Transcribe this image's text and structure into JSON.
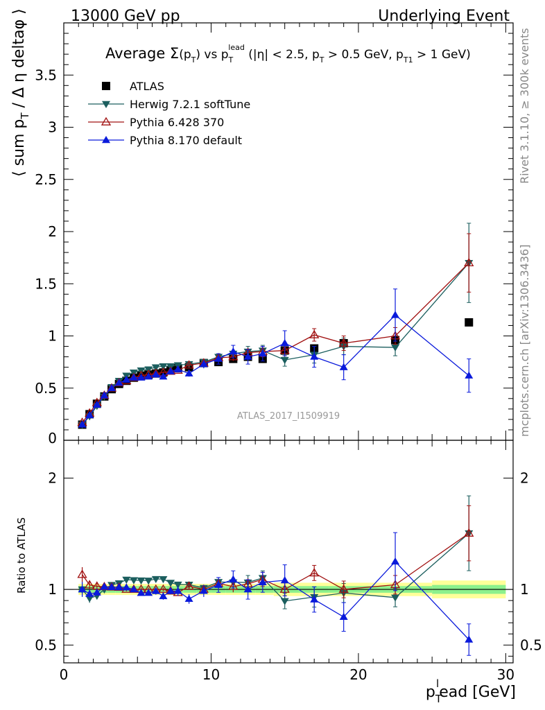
{
  "header": {
    "left_label": "13000 GeV pp",
    "right_label": "Underlying Event"
  },
  "side_labels": {
    "rivet": "Rivet 3.1.10, ≥ 300k events",
    "mcplots": "mcplots.cern.ch [arXiv:1306.3436]"
  },
  "chart_data": {
    "type": "scatter",
    "title": "Average Σ(pT) vs pT_lead (|η| < 2.5, pT > 0.5 GeV, pT1 > 1 GeV)",
    "title_parts": {
      "prefix": "Average ",
      "sigma": "Σ",
      "p1": "(p",
      "sub_T": "T",
      "p2": ") vs p",
      "sup_lead": "lead",
      "p3": " (|η| < 2.5, p",
      "p4": " > 0.5 GeV, p",
      "sub_T1": "T1",
      "p5": " > 1 GeV)"
    },
    "watermark": "ATLAS_2017_I1509919",
    "ylabel": "⟨ sum p_T / Δη deltaφ ⟩",
    "ylabel_parts": {
      "a": "⟨ sum p",
      "sub": "T",
      "b": " / Δ η deltaφ ⟩"
    },
    "xlabel": "p_T^l ead [GeV]",
    "xlabel_parts": {
      "p": "p",
      "sub": "T",
      "sup": "l",
      "rest": "ead [GeV]"
    },
    "ratio_ylabel": "Ratio to ATLAS",
    "xlim": [
      0,
      30.5
    ],
    "ylim": [
      0,
      4.0
    ],
    "ratio_ylim": [
      0.34,
      2.34
    ],
    "x_ticks": [
      0,
      10,
      20,
      30
    ],
    "y_ticks": [
      0.5,
      1,
      1.5,
      2,
      2.5,
      3,
      3.5
    ],
    "y_tick_labels": [
      "0.5",
      "1",
      "1.5",
      "2",
      "2.5",
      "3",
      "3.5"
    ],
    "y_zero_label": "0",
    "ratio_ticks": [
      0.5,
      1,
      2
    ],
    "ratio_tick_labels": [
      "0.5",
      "1",
      "2"
    ],
    "legend_position": "top-left",
    "x": [
      1.25,
      1.75,
      2.25,
      2.75,
      3.25,
      3.75,
      4.25,
      4.75,
      5.25,
      5.75,
      6.25,
      6.75,
      7.25,
      7.75,
      8.5,
      9.5,
      10.5,
      11.5,
      12.5,
      13.5,
      15.0,
      17.0,
      19.0,
      22.5,
      27.5
    ],
    "series": [
      {
        "name": "ATLAS",
        "color": "#000000",
        "marker": "square",
        "values": [
          0.15,
          0.25,
          0.35,
          0.42,
          0.49,
          0.54,
          0.57,
          0.6,
          0.62,
          0.63,
          0.64,
          0.65,
          0.67,
          0.69,
          0.7,
          0.74,
          0.75,
          0.78,
          0.8,
          0.78,
          0.86,
          0.88,
          0.93,
          0.96,
          1.13
        ],
        "band_inner": [
          0.03,
          0.03,
          0.03,
          0.03,
          0.03,
          0.03,
          0.03,
          0.03,
          0.03,
          0.03,
          0.03,
          0.03,
          0.03,
          0.03,
          0.03,
          0.03,
          0.03,
          0.03,
          0.03,
          0.03,
          0.03,
          0.03,
          0.03,
          0.03,
          0.04
        ],
        "band_outer": [
          0.05,
          0.05,
          0.05,
          0.05,
          0.05,
          0.05,
          0.05,
          0.05,
          0.05,
          0.05,
          0.05,
          0.05,
          0.05,
          0.05,
          0.05,
          0.05,
          0.05,
          0.05,
          0.05,
          0.05,
          0.06,
          0.06,
          0.06,
          0.06,
          0.08
        ]
      },
      {
        "name": "Herwig 7.2.1 softTune",
        "color": "#1b5e5e",
        "marker": "triangle-down",
        "values": [
          0.15,
          0.23,
          0.33,
          0.42,
          0.51,
          0.57,
          0.62,
          0.65,
          0.67,
          0.68,
          0.7,
          0.71,
          0.71,
          0.72,
          0.73,
          0.75,
          0.8,
          0.83,
          0.85,
          0.86,
          0.77,
          0.82,
          0.9,
          0.89,
          1.7
        ],
        "errors": [
          0.01,
          0.01,
          0.01,
          0.01,
          0.01,
          0.01,
          0.01,
          0.01,
          0.01,
          0.01,
          0.01,
          0.01,
          0.01,
          0.01,
          0.02,
          0.02,
          0.03,
          0.04,
          0.05,
          0.05,
          0.06,
          0.08,
          0.08,
          0.08,
          0.38
        ]
      },
      {
        "name": "Pythia 6.428 370",
        "color": "#a01010",
        "marker": "triangle-up-open",
        "values": [
          0.17,
          0.26,
          0.36,
          0.43,
          0.5,
          0.55,
          0.57,
          0.6,
          0.62,
          0.63,
          0.64,
          0.65,
          0.66,
          0.67,
          0.72,
          0.74,
          0.79,
          0.8,
          0.84,
          0.85,
          0.86,
          1.01,
          0.93,
          1.0,
          1.7
        ],
        "errors": [
          0.01,
          0.01,
          0.01,
          0.01,
          0.01,
          0.01,
          0.01,
          0.01,
          0.01,
          0.01,
          0.01,
          0.01,
          0.01,
          0.01,
          0.02,
          0.02,
          0.03,
          0.04,
          0.04,
          0.05,
          0.05,
          0.06,
          0.07,
          0.08,
          0.28
        ]
      },
      {
        "name": "Pythia 8.170 default",
        "color": "#0a1adb",
        "marker": "triangle-up",
        "values": [
          0.15,
          0.24,
          0.34,
          0.43,
          0.5,
          0.55,
          0.58,
          0.6,
          0.6,
          0.61,
          0.63,
          0.61,
          0.66,
          0.68,
          0.64,
          0.73,
          0.78,
          0.85,
          0.8,
          0.83,
          0.93,
          0.8,
          0.7,
          1.2,
          0.62
        ],
        "errors": [
          0.01,
          0.01,
          0.01,
          0.01,
          0.01,
          0.01,
          0.01,
          0.01,
          0.01,
          0.01,
          0.02,
          0.02,
          0.02,
          0.03,
          0.03,
          0.04,
          0.05,
          0.06,
          0.07,
          0.07,
          0.12,
          0.1,
          0.12,
          0.25,
          0.16
        ]
      }
    ]
  }
}
